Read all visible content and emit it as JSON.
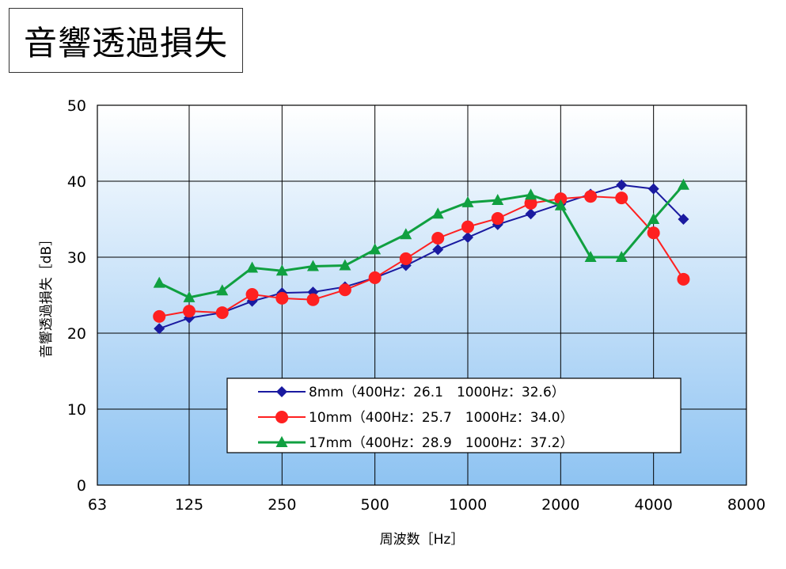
{
  "title": "音響透過損失",
  "chart_data": {
    "type": "line",
    "xlabel": "周波数［Hz］",
    "ylabel": "音響透過損失［dB］",
    "x_scale": "log",
    "xlim": [
      63,
      8000
    ],
    "ylim": [
      0,
      50
    ],
    "grid": true,
    "x_ticks": [
      "63",
      "125",
      "250",
      "500",
      "1000",
      "2000",
      "4000",
      "8000"
    ],
    "y_ticks": [
      "0",
      "10",
      "20",
      "30",
      "40",
      "50"
    ],
    "legend_position": "bottom-center",
    "x": [
      100,
      125,
      160,
      200,
      250,
      315,
      400,
      500,
      630,
      800,
      1000,
      1250,
      1600,
      2000,
      2500,
      3150,
      4000,
      5000
    ],
    "series": [
      {
        "name": "8mm（400Hz：26.1　1000Hz：32.6）",
        "color": "#1a1aa0",
        "marker": "diamond",
        "values": [
          20.6,
          22.0,
          22.7,
          24.2,
          25.3,
          25.4,
          26.1,
          27.3,
          28.9,
          31.0,
          32.6,
          34.3,
          35.7,
          37.0,
          38.3,
          39.5,
          39.0,
          35.0
        ]
      },
      {
        "name": "10mm（400Hz：25.7　1000Hz：34.0）",
        "color": "#ff2020",
        "marker": "circle",
        "values": [
          22.2,
          22.9,
          22.7,
          25.1,
          24.6,
          24.4,
          25.7,
          27.3,
          29.8,
          32.5,
          34.0,
          35.1,
          37.1,
          37.7,
          38.0,
          37.8,
          33.2,
          27.1
        ]
      },
      {
        "name": "17mm（400Hz：28.9　1000Hz：37.2）",
        "color": "#10a040",
        "marker": "triangle",
        "values": [
          26.6,
          24.7,
          25.6,
          28.6,
          28.2,
          28.8,
          28.9,
          31.0,
          33.0,
          35.7,
          37.2,
          37.5,
          38.2,
          36.8,
          30.0,
          30.0,
          35.0,
          39.5
        ]
      }
    ]
  }
}
